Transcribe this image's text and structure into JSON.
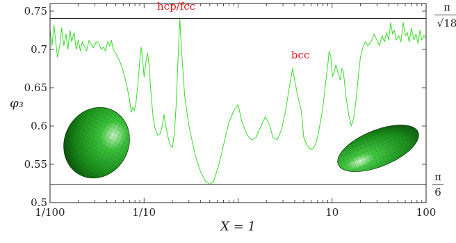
{
  "chart_data": {
    "type": "line",
    "x_scale": "log",
    "xlim": [
      0.01,
      100
    ],
    "ylim": [
      0.5,
      0.76
    ],
    "xlabel": "X = 1",
    "ylabel": "φ₃",
    "x_ticks": [
      {
        "value": 0.01,
        "label": "1/100"
      },
      {
        "value": 0.1,
        "label": "1/10"
      },
      {
        "value": 10,
        "label": "10"
      },
      {
        "value": 100,
        "label": "100"
      }
    ],
    "y_ticks": [
      {
        "value": 0.5,
        "label": "0.5"
      },
      {
        "value": 0.55,
        "label": "0.55"
      },
      {
        "value": 0.6,
        "label": "0.6"
      },
      {
        "value": 0.65,
        "label": "0.65"
      },
      {
        "value": 0.7,
        "label": "0.7"
      },
      {
        "value": 0.75,
        "label": "0.75"
      }
    ],
    "reference_lines": [
      {
        "value": 0.7405,
        "label_num": "π",
        "label_den": "√18"
      },
      {
        "value": 0.5236,
        "label_num": "π",
        "label_den": "6"
      }
    ],
    "annotations": [
      {
        "text": "hcp/fcc",
        "x": 0.22,
        "y": 0.752
      },
      {
        "text": "bcc",
        "x": 4.6,
        "y": 0.688
      }
    ],
    "series": [
      {
        "color": "#33dd22",
        "points": [
          [
            0.01,
            0.725
          ],
          [
            0.0105,
            0.705
          ],
          [
            0.011,
            0.732
          ],
          [
            0.0115,
            0.71
          ],
          [
            0.012,
            0.69
          ],
          [
            0.0127,
            0.705
          ],
          [
            0.0133,
            0.728
          ],
          [
            0.014,
            0.705
          ],
          [
            0.0148,
            0.72
          ],
          [
            0.0155,
            0.7
          ],
          [
            0.0163,
            0.725
          ],
          [
            0.017,
            0.71
          ],
          [
            0.018,
            0.722
          ],
          [
            0.019,
            0.7
          ],
          [
            0.02,
            0.712
          ],
          [
            0.021,
            0.698
          ],
          [
            0.022,
            0.71
          ],
          [
            0.023,
            0.705
          ],
          [
            0.0245,
            0.698
          ],
          [
            0.026,
            0.712
          ],
          [
            0.0275,
            0.706
          ],
          [
            0.029,
            0.702
          ],
          [
            0.031,
            0.71
          ],
          [
            0.033,
            0.708
          ],
          [
            0.035,
            0.7
          ],
          [
            0.037,
            0.703
          ],
          [
            0.039,
            0.698
          ],
          [
            0.041,
            0.71
          ],
          [
            0.043,
            0.704
          ],
          [
            0.045,
            0.712
          ],
          [
            0.047,
            0.7
          ],
          [
            0.05,
            0.695
          ],
          [
            0.055,
            0.685
          ],
          [
            0.06,
            0.672
          ],
          [
            0.065,
            0.655
          ],
          [
            0.07,
            0.635
          ],
          [
            0.073,
            0.618
          ],
          [
            0.076,
            0.625
          ],
          [
            0.079,
            0.62
          ],
          [
            0.082,
            0.63
          ],
          [
            0.086,
            0.655
          ],
          [
            0.09,
            0.685
          ],
          [
            0.093,
            0.703
          ],
          [
            0.096,
            0.69
          ],
          [
            0.1,
            0.664
          ],
          [
            0.105,
            0.685
          ],
          [
            0.109,
            0.695
          ],
          [
            0.113,
            0.68
          ],
          [
            0.118,
            0.645
          ],
          [
            0.125,
            0.61
          ],
          [
            0.132,
            0.595
          ],
          [
            0.14,
            0.588
          ],
          [
            0.148,
            0.59
          ],
          [
            0.156,
            0.6
          ],
          [
            0.163,
            0.615
          ],
          [
            0.17,
            0.6
          ],
          [
            0.18,
            0.585
          ],
          [
            0.19,
            0.575
          ],
          [
            0.2,
            0.572
          ],
          [
            0.21,
            0.59
          ],
          [
            0.22,
            0.63
          ],
          [
            0.23,
            0.69
          ],
          [
            0.24,
            0.74
          ],
          [
            0.25,
            0.7
          ],
          [
            0.27,
            0.64
          ],
          [
            0.3,
            0.6
          ],
          [
            0.35,
            0.562
          ],
          [
            0.4,
            0.54
          ],
          [
            0.45,
            0.528
          ],
          [
            0.5,
            0.524
          ],
          [
            0.55,
            0.528
          ],
          [
            0.62,
            0.548
          ],
          [
            0.7,
            0.575
          ],
          [
            0.8,
            0.605
          ],
          [
            0.9,
            0.62
          ],
          [
            1.0,
            0.628
          ],
          [
            1.1,
            0.605
          ],
          [
            1.25,
            0.588
          ],
          [
            1.4,
            0.582
          ],
          [
            1.55,
            0.585
          ],
          [
            1.75,
            0.6
          ],
          [
            1.95,
            0.612
          ],
          [
            2.15,
            0.602
          ],
          [
            2.35,
            0.585
          ],
          [
            2.6,
            0.582
          ],
          [
            2.9,
            0.595
          ],
          [
            3.2,
            0.62
          ],
          [
            3.5,
            0.65
          ],
          [
            3.8,
            0.675
          ],
          [
            4.0,
            0.66
          ],
          [
            4.3,
            0.64
          ],
          [
            4.7,
            0.62
          ],
          [
            5.0,
            0.585
          ],
          [
            5.4,
            0.575
          ],
          [
            5.8,
            0.57
          ],
          [
            6.2,
            0.57
          ],
          [
            6.6,
            0.575
          ],
          [
            7.0,
            0.585
          ],
          [
            7.5,
            0.605
          ],
          [
            8.0,
            0.625
          ],
          [
            8.5,
            0.655
          ],
          [
            9.0,
            0.68
          ],
          [
            9.3,
            0.698
          ],
          [
            9.7,
            0.69
          ],
          [
            10.1,
            0.665
          ],
          [
            10.5,
            0.67
          ],
          [
            11.0,
            0.68
          ],
          [
            11.5,
            0.67
          ],
          [
            12.2,
            0.66
          ],
          [
            12.7,
            0.675
          ],
          [
            13.2,
            0.67
          ],
          [
            14.0,
            0.64
          ],
          [
            15.0,
            0.615
          ],
          [
            16.0,
            0.6
          ],
          [
            17.0,
            0.61
          ],
          [
            18.0,
            0.635
          ],
          [
            19.0,
            0.665
          ],
          [
            20.0,
            0.69
          ],
          [
            21.0,
            0.7
          ],
          [
            22.5,
            0.71
          ],
          [
            24.0,
            0.705
          ],
          [
            26.0,
            0.71
          ],
          [
            28.0,
            0.72
          ],
          [
            30.0,
            0.712
          ],
          [
            32.0,
            0.705
          ],
          [
            34.0,
            0.718
          ],
          [
            36.0,
            0.71
          ],
          [
            38.0,
            0.722
          ],
          [
            40.0,
            0.712
          ],
          [
            42.0,
            0.735
          ],
          [
            44.0,
            0.72
          ],
          [
            46.0,
            0.725
          ],
          [
            48.0,
            0.712
          ],
          [
            51.0,
            0.718
          ],
          [
            54.0,
            0.71
          ],
          [
            57.0,
            0.735
          ],
          [
            60.0,
            0.718
          ],
          [
            63.0,
            0.722
          ],
          [
            66.0,
            0.71
          ],
          [
            70.0,
            0.728
          ],
          [
            74.0,
            0.712
          ],
          [
            78.0,
            0.72
          ],
          [
            82.0,
            0.708
          ],
          [
            86.0,
            0.725
          ],
          [
            90.0,
            0.712
          ],
          [
            95.0,
            0.718
          ],
          [
            100.0,
            0.715
          ]
        ]
      }
    ]
  },
  "insets": [
    {
      "shape": "oblate-ellipsoid-icon",
      "color": "#1f9f1f"
    },
    {
      "shape": "prolate-ellipsoid-icon",
      "color": "#1f9f1f"
    }
  ]
}
